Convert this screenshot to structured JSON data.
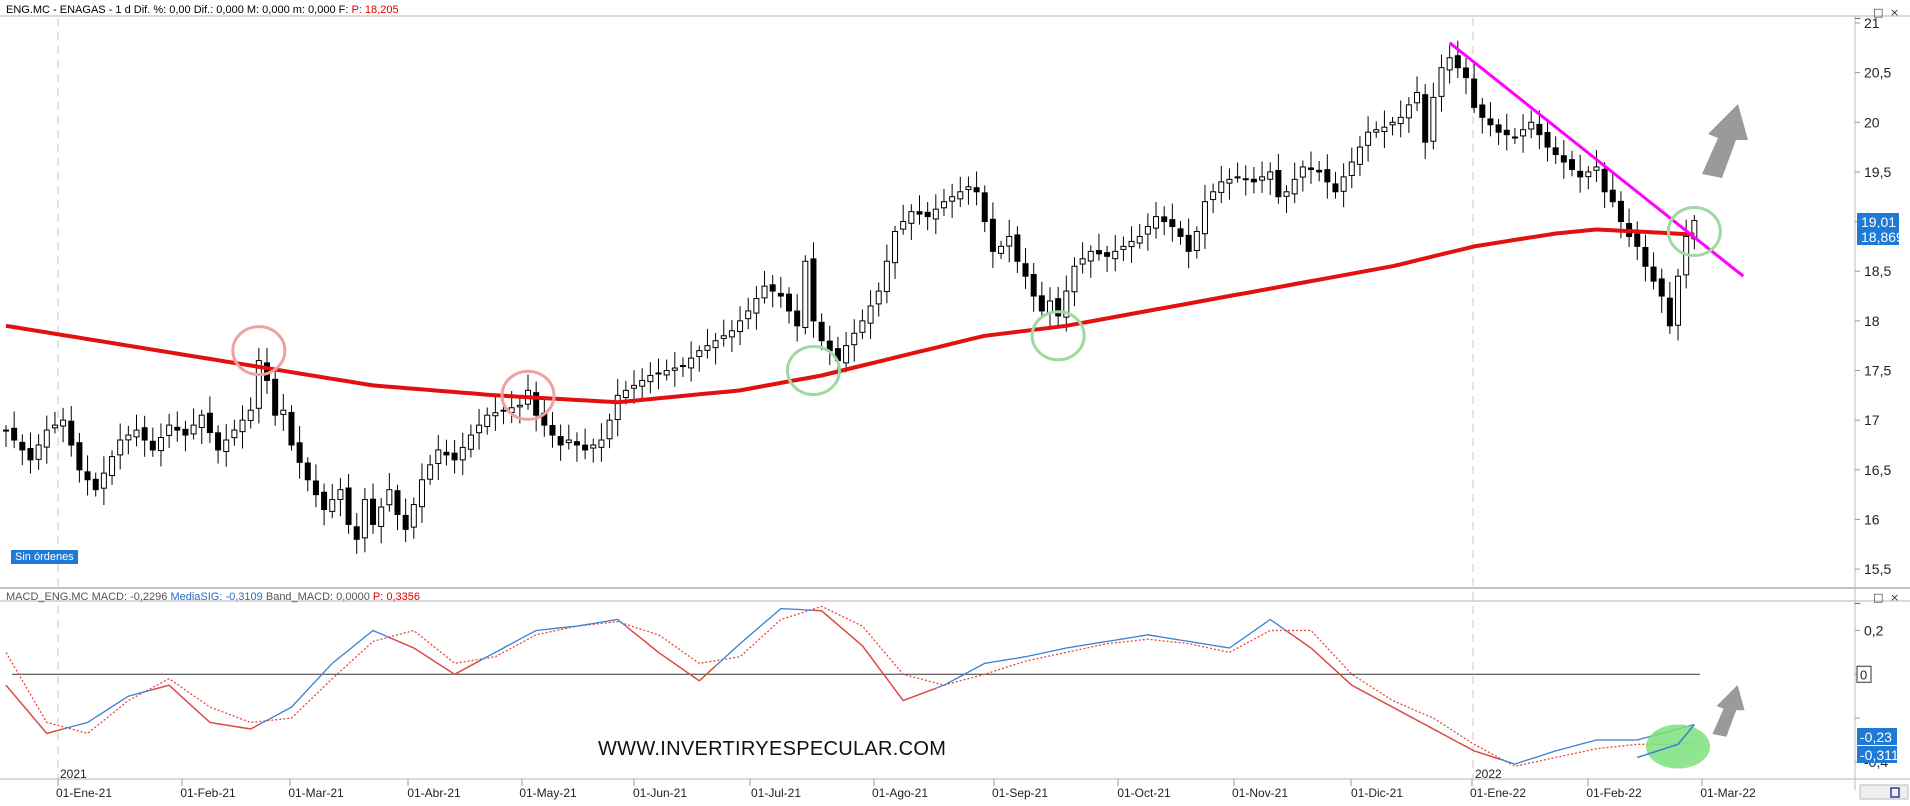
{
  "header": {
    "symbol": "ENG.MC - ENAGAS - 1 d",
    "dif_pct": "Dif. %: 0,00",
    "dif": "Dif.: 0,000",
    "max": "M: 0,000",
    "min": "m: 0,000",
    "f": "F:",
    "price": "P: 18,205"
  },
  "badge": "Sin órdenes",
  "macd_header": {
    "name": "MACD_ENG.MC",
    "macd": "MACD: -0,2296",
    "signal": "MediaSIG: -0,3109",
    "band": "Band_MACD: 0,0000",
    "price": "P: 0,3356"
  },
  "watermark": "WWW.INVERTIRYESPECULAR.COM",
  "year_labels": [
    "2021",
    "2022"
  ],
  "colors": {
    "price_candles": "#000000",
    "sma": "#e31010",
    "trendline": "#ff00ff",
    "arrow": "#9a9a9a",
    "macd_line": "#3b7fd4",
    "signal_line": "#e8493a",
    "circle_red": "#f0a0a0",
    "circle_green": "#9fd99f",
    "highlight_green": "#7de07d",
    "last_price_label": "#1f7ad6"
  },
  "icons": [
    "min-icon",
    "max-icon",
    "close-icon",
    "scroll-icon",
    "save-icon"
  ],
  "chart_data": [
    {
      "type": "candlestick",
      "title": "ENG.MC - ENAGAS - 1 d",
      "xlabel": "",
      "ylabel": "",
      "x_ticks": [
        "01-Ene-21",
        "01-Feb-21",
        "01-Mar-21",
        "01-Abr-21",
        "01-May-21",
        "01-Jun-21",
        "01-Jul-21",
        "01-Ago-21",
        "01-Sep-21",
        "01-Oct-21",
        "01-Nov-21",
        "01-Dic-21",
        "01-Ene-22",
        "01-Feb-22",
        "01-Mar-22"
      ],
      "y_ticks": [
        "15,5",
        "16",
        "16,5",
        "17",
        "17,5",
        "18",
        "18,5",
        "19",
        "19,5",
        "20",
        "20,5",
        "21"
      ],
      "ylim": [
        15.35,
        21.05
      ],
      "last_price_labels": [
        "19,01",
        "18,869"
      ],
      "series": [
        {
          "name": "price",
          "points": [
            [
              0,
              16.9
            ],
            [
              3,
              16.6
            ],
            [
              5,
              16.9
            ],
            [
              7,
              17.0
            ],
            [
              9,
              16.5
            ],
            [
              11,
              16.3
            ],
            [
              14,
              16.8
            ],
            [
              16,
              16.9
            ],
            [
              18,
              16.7
            ],
            [
              20,
              16.95
            ],
            [
              22,
              16.85
            ],
            [
              24,
              17.05
            ],
            [
              26,
              16.7
            ],
            [
              28,
              16.9
            ],
            [
              30,
              17.1
            ],
            [
              31,
              17.6
            ],
            [
              32,
              17.4
            ],
            [
              33,
              17.05
            ],
            [
              34,
              17.1
            ],
            [
              35,
              16.75
            ],
            [
              37,
              16.4
            ],
            [
              39,
              16.1
            ],
            [
              41,
              16.3
            ],
            [
              42,
              15.95
            ],
            [
              43,
              15.8
            ],
            [
              44,
              16.2
            ],
            [
              45,
              15.95
            ],
            [
              47,
              16.3
            ],
            [
              48,
              16.05
            ],
            [
              49,
              15.9
            ],
            [
              51,
              16.4
            ],
            [
              53,
              16.7
            ],
            [
              55,
              16.6
            ],
            [
              57,
              16.85
            ],
            [
              59,
              17.05
            ],
            [
              61,
              17.1
            ],
            [
              63,
              17.15
            ],
            [
              64,
              17.3
            ],
            [
              65,
              17.05
            ],
            [
              66,
              16.95
            ],
            [
              68,
              16.75
            ],
            [
              69,
              16.8
            ],
            [
              71,
              16.7
            ],
            [
              73,
              16.8
            ],
            [
              74,
              17.0
            ],
            [
              75,
              17.25
            ],
            [
              77,
              17.35
            ],
            [
              79,
              17.45
            ],
            [
              81,
              17.5
            ],
            [
              83,
              17.55
            ],
            [
              85,
              17.7
            ],
            [
              87,
              17.8
            ],
            [
              89,
              17.9
            ],
            [
              91,
              18.1
            ],
            [
              93,
              18.35
            ],
            [
              95,
              18.25
            ],
            [
              96,
              18.1
            ],
            [
              97,
              17.95
            ],
            [
              98,
              18.6
            ],
            [
              99,
              18.0
            ],
            [
              100,
              17.8
            ],
            [
              101,
              17.7
            ],
            [
              102,
              17.6
            ],
            [
              103,
              17.75
            ],
            [
              105,
              18.0
            ],
            [
              107,
              18.3
            ],
            [
              109,
              18.9
            ],
            [
              111,
              19.1
            ],
            [
              113,
              19.05
            ],
            [
              115,
              19.2
            ],
            [
              117,
              19.3
            ],
            [
              118,
              19.35
            ],
            [
              119,
              19.3
            ],
            [
              120,
              19.0
            ],
            [
              121,
              18.7
            ],
            [
              122,
              18.75
            ],
            [
              123,
              18.85
            ],
            [
              124,
              18.6
            ],
            [
              125,
              18.45
            ],
            [
              126,
              18.25
            ],
            [
              127,
              18.1
            ],
            [
              128,
              18.2
            ],
            [
              129,
              18.05
            ],
            [
              131,
              18.55
            ],
            [
              133,
              18.7
            ],
            [
              135,
              18.65
            ],
            [
              137,
              18.75
            ],
            [
              139,
              18.85
            ],
            [
              141,
              19.05
            ],
            [
              143,
              18.95
            ],
            [
              144,
              18.85
            ],
            [
              145,
              18.7
            ],
            [
              146,
              18.9
            ],
            [
              147,
              19.2
            ],
            [
              149,
              19.4
            ],
            [
              151,
              19.45
            ],
            [
              153,
              19.4
            ],
            [
              155,
              19.5
            ],
            [
              156,
              19.25
            ],
            [
              157,
              19.3
            ],
            [
              159,
              19.55
            ],
            [
              161,
              19.5
            ],
            [
              163,
              19.3
            ],
            [
              165,
              19.6
            ],
            [
              167,
              19.9
            ],
            [
              169,
              19.95
            ],
            [
              171,
              20.05
            ],
            [
              173,
              20.3
            ],
            [
              174,
              19.8
            ],
            [
              175,
              20.25
            ],
            [
              176,
              20.55
            ],
            [
              177,
              20.65
            ],
            [
              178,
              20.55
            ],
            [
              179,
              20.45
            ],
            [
              180,
              20.15
            ],
            [
              181,
              20.05
            ],
            [
              183,
              19.9
            ],
            [
              185,
              19.85
            ],
            [
              187,
              20.0
            ],
            [
              189,
              19.75
            ],
            [
              191,
              19.6
            ],
            [
              193,
              19.45
            ],
            [
              195,
              19.55
            ],
            [
              196,
              19.3
            ],
            [
              197,
              19.2
            ],
            [
              198,
              19.0
            ],
            [
              199,
              18.85
            ],
            [
              200,
              18.75
            ],
            [
              201,
              18.55
            ],
            [
              202,
              18.4
            ],
            [
              203,
              18.25
            ],
            [
              204,
              17.95
            ],
            [
              205,
              18.45
            ],
            [
              206,
              18.85
            ],
            [
              207,
              19.01
            ]
          ]
        },
        {
          "name": "SMA",
          "points": [
            [
              0,
              17.95
            ],
            [
              15,
              17.75
            ],
            [
              30,
              17.55
            ],
            [
              45,
              17.35
            ],
            [
              60,
              17.25
            ],
            [
              75,
              17.18
            ],
            [
              90,
              17.3
            ],
            [
              100,
              17.45
            ],
            [
              110,
              17.65
            ],
            [
              120,
              17.85
            ],
            [
              130,
              17.95
            ],
            [
              140,
              18.1
            ],
            [
              150,
              18.25
            ],
            [
              160,
              18.4
            ],
            [
              170,
              18.55
            ],
            [
              180,
              18.75
            ],
            [
              190,
              18.88
            ],
            [
              195,
              18.92
            ],
            [
              200,
              18.9
            ],
            [
              207,
              18.869
            ]
          ]
        }
      ],
      "trendline": {
        "from": [
          177,
          20.8
        ],
        "to": [
          213,
          18.45
        ]
      },
      "highlight_circles": [
        {
          "x": 31,
          "y": 17.7,
          "color": "red"
        },
        {
          "x": 64,
          "y": 17.25,
          "color": "red"
        },
        {
          "x": 99,
          "y": 17.5,
          "color": "green"
        },
        {
          "x": 129,
          "y": 17.85,
          "color": "green"
        },
        {
          "x": 207,
          "y": 18.9,
          "color": "green"
        }
      ]
    },
    {
      "type": "line",
      "title": "MACD_ENG.MC",
      "xlabel": "",
      "ylabel": "",
      "y_ticks": [
        "0,2",
        "0",
        "-0,2",
        "-0,4"
      ],
      "ylim": [
        -0.46,
        0.33
      ],
      "zero_label": "0",
      "last_value_labels": [
        "-0,23",
        "-0,311"
      ],
      "series": [
        {
          "name": "MACD",
          "points": [
            [
              0,
              -0.05
            ],
            [
              5,
              -0.27
            ],
            [
              10,
              -0.22
            ],
            [
              15,
              -0.1
            ],
            [
              20,
              -0.05
            ],
            [
              25,
              -0.22
            ],
            [
              30,
              -0.25
            ],
            [
              35,
              -0.15
            ],
            [
              40,
              0.05
            ],
            [
              45,
              0.2
            ],
            [
              50,
              0.12
            ],
            [
              55,
              0.0
            ],
            [
              60,
              0.1
            ],
            [
              65,
              0.2
            ],
            [
              70,
              0.22
            ],
            [
              75,
              0.25
            ],
            [
              80,
              0.1
            ],
            [
              85,
              -0.03
            ],
            [
              90,
              0.14
            ],
            [
              95,
              0.3
            ],
            [
              100,
              0.29
            ],
            [
              105,
              0.13
            ],
            [
              110,
              -0.12
            ],
            [
              115,
              -0.05
            ],
            [
              120,
              0.05
            ],
            [
              125,
              0.08
            ],
            [
              130,
              0.12
            ],
            [
              135,
              0.15
            ],
            [
              140,
              0.18
            ],
            [
              145,
              0.15
            ],
            [
              150,
              0.12
            ],
            [
              155,
              0.25
            ],
            [
              160,
              0.12
            ],
            [
              165,
              -0.05
            ],
            [
              170,
              -0.15
            ],
            [
              175,
              -0.25
            ],
            [
              180,
              -0.35
            ],
            [
              185,
              -0.41
            ],
            [
              190,
              -0.35
            ],
            [
              195,
              -0.3
            ],
            [
              200,
              -0.3
            ],
            [
              205,
              -0.25
            ],
            [
              207,
              -0.2296
            ]
          ]
        },
        {
          "name": "MediaSIG",
          "points": [
            [
              0,
              0.1
            ],
            [
              5,
              -0.22
            ],
            [
              10,
              -0.27
            ],
            [
              15,
              -0.12
            ],
            [
              20,
              -0.02
            ],
            [
              25,
              -0.15
            ],
            [
              30,
              -0.22
            ],
            [
              35,
              -0.2
            ],
            [
              40,
              -0.02
            ],
            [
              45,
              0.15
            ],
            [
              50,
              0.2
            ],
            [
              55,
              0.05
            ],
            [
              60,
              0.08
            ],
            [
              65,
              0.18
            ],
            [
              70,
              0.22
            ],
            [
              75,
              0.24
            ],
            [
              80,
              0.18
            ],
            [
              85,
              0.05
            ],
            [
              90,
              0.08
            ],
            [
              95,
              0.25
            ],
            [
              100,
              0.31
            ],
            [
              105,
              0.22
            ],
            [
              110,
              0.0
            ],
            [
              115,
              -0.05
            ],
            [
              120,
              0.0
            ],
            [
              125,
              0.06
            ],
            [
              130,
              0.1
            ],
            [
              135,
              0.14
            ],
            [
              140,
              0.16
            ],
            [
              145,
              0.14
            ],
            [
              150,
              0.1
            ],
            [
              155,
              0.2
            ],
            [
              160,
              0.2
            ],
            [
              165,
              0.0
            ],
            [
              170,
              -0.12
            ],
            [
              175,
              -0.2
            ],
            [
              180,
              -0.32
            ],
            [
              185,
              -0.42
            ],
            [
              190,
              -0.38
            ],
            [
              195,
              -0.34
            ],
            [
              200,
              -0.32
            ],
            [
              205,
              -0.32
            ],
            [
              207,
              -0.3109
            ]
          ]
        }
      ]
    }
  ]
}
